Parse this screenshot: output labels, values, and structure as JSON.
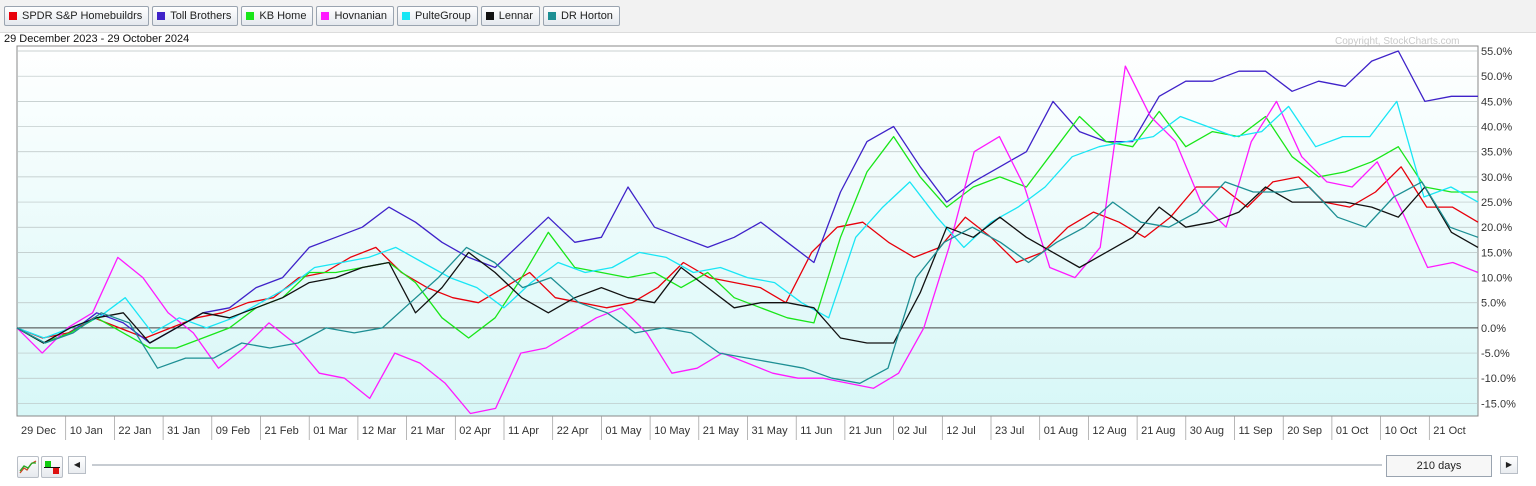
{
  "legend": [
    {
      "label": "SPDR S&P Homebuildrs",
      "color": "#e8000b"
    },
    {
      "label": "Toll Brothers",
      "color": "#3f22c9"
    },
    {
      "label": "KB Home",
      "color": "#19e619"
    },
    {
      "label": "Hovnanian",
      "color": "#ff1aff"
    },
    {
      "label": "PulteGroup",
      "color": "#19e6f5"
    },
    {
      "label": "Lennar",
      "color": "#111111"
    },
    {
      "label": "DR Horton",
      "color": "#1d8f94"
    }
  ],
  "header": {
    "date_range": "29 December 2023 - 29 October 2024",
    "copyright": "Copyright, StockCharts.com"
  },
  "controls": {
    "range_label": "210 days",
    "left_arrow": "◀",
    "right_arrow": "▶",
    "line_chart_icon": "line-chart-icon",
    "perf_icon": "performance-bar-icon"
  },
  "chart_data": {
    "type": "line",
    "x_labels": [
      "29 Dec",
      "10 Jan",
      "22 Jan",
      "31 Jan",
      "09 Feb",
      "21 Feb",
      "01 Mar",
      "12 Mar",
      "21 Mar",
      "02 Apr",
      "11 Apr",
      "22 Apr",
      "01 May",
      "10 May",
      "21 May",
      "31 May",
      "11 Jun",
      "21 Jun",
      "02 Jul",
      "12 Jul",
      "23 Jul",
      "01 Aug",
      "12 Aug",
      "21 Aug",
      "30 Aug",
      "11 Sep",
      "20 Sep",
      "01 Oct",
      "10 Oct",
      "21 Oct"
    ],
    "y_ticks": [
      55,
      50,
      45,
      40,
      35,
      30,
      25,
      20,
      15,
      10,
      5,
      0,
      -5,
      -10,
      -15
    ],
    "y_tick_labels": [
      "55.0%",
      "50.0%",
      "45.0%",
      "40.0%",
      "35.0%",
      "30.0%",
      "25.0%",
      "20.0%",
      "15.0%",
      "10.0%",
      "5.0%",
      "0.0%",
      "-5.0%",
      "-10.0%",
      "-15.0%"
    ],
    "ylim": [
      -17.5,
      56
    ],
    "grid": true,
    "series": [
      {
        "name": "SPDR S&P Homebuildrs",
        "color": "#e8000b",
        "values": [
          0,
          -2,
          -1,
          2,
          0,
          -2,
          0,
          2,
          3,
          5,
          6,
          10,
          11,
          14,
          16,
          11,
          8,
          6,
          5,
          8,
          11,
          6,
          5,
          4,
          5,
          8,
          13,
          10,
          9,
          8,
          5,
          15,
          20,
          21,
          17,
          14,
          16,
          22,
          18,
          13,
          15,
          20,
          23,
          21,
          18,
          22,
          28,
          28,
          24,
          29,
          30,
          25,
          24,
          27,
          32,
          24,
          24,
          21
        ]
      },
      {
        "name": "Toll Brothers",
        "color": "#3f22c9",
        "values": [
          0,
          -3,
          -1,
          3,
          1,
          -3,
          0,
          3,
          4,
          8,
          10,
          16,
          18,
          20,
          24,
          21,
          17,
          14,
          12,
          17,
          22,
          17,
          18,
          28,
          20,
          18,
          16,
          18,
          21,
          17,
          13,
          27,
          37,
          40,
          32,
          25,
          29,
          32,
          35,
          45,
          39,
          37,
          37,
          46,
          49,
          49,
          51,
          51,
          47,
          49,
          48,
          53,
          55,
          45,
          46,
          46
        ]
      },
      {
        "name": "KB Home",
        "color": "#19e619",
        "values": [
          0,
          -3,
          -1,
          2,
          -1,
          -4,
          -4,
          -2,
          0,
          4,
          6,
          11,
          11,
          12,
          13,
          9,
          2,
          -2,
          2,
          10,
          19,
          12,
          11,
          10,
          11,
          8,
          11,
          6,
          4,
          2,
          1,
          18,
          31,
          38,
          30,
          24,
          28,
          30,
          28,
          35,
          42,
          37,
          36,
          43,
          36,
          39,
          38,
          42,
          34,
          30,
          31,
          33,
          36,
          28,
          27,
          27
        ]
      },
      {
        "name": "Hovnanian",
        "color": "#ff1aff",
        "values": [
          0,
          -5,
          0,
          3,
          14,
          10,
          3,
          -1,
          -8,
          -4,
          1,
          -3,
          -9,
          -10,
          -14,
          -5,
          -7,
          -11,
          -17,
          -16,
          -5,
          -4,
          -1,
          2,
          4,
          -1,
          -9,
          -8,
          -5,
          -7,
          -9,
          -10,
          -10,
          -11,
          -12,
          -9,
          0,
          16,
          35,
          38,
          28,
          12,
          10,
          16,
          52,
          42,
          37,
          25,
          20,
          37,
          45,
          34,
          29,
          28,
          33,
          23,
          12,
          13,
          11
        ]
      },
      {
        "name": "PulteGroup",
        "color": "#19e6f5",
        "values": [
          0,
          -2,
          0,
          2,
          6,
          -1,
          2,
          0,
          2,
          5,
          8,
          12,
          13,
          14,
          16,
          13,
          10,
          8,
          4,
          9,
          13,
          11,
          12,
          15,
          14,
          11,
          12,
          10,
          9,
          5,
          2,
          18,
          24,
          29,
          22,
          16,
          21,
          24,
          28,
          34,
          36,
          37,
          38,
          42,
          40,
          38,
          39,
          44,
          36,
          38,
          38,
          45,
          26,
          28,
          25
        ]
      },
      {
        "name": "Lennar",
        "color": "#111111",
        "values": [
          0,
          -3,
          0,
          2,
          3,
          -3,
          0,
          3,
          2,
          4,
          6,
          9,
          10,
          12,
          13,
          3,
          8,
          15,
          11,
          6,
          3,
          6,
          8,
          6,
          5,
          12,
          8,
          4,
          5,
          5,
          4,
          -2,
          -3,
          -3,
          7,
          20,
          18,
          22,
          18,
          15,
          12,
          15,
          18,
          24,
          20,
          21,
          23,
          28,
          25,
          25,
          25,
          24,
          22,
          28,
          19,
          16
        ]
      },
      {
        "name": "DR Horton",
        "color": "#1d8f94",
        "values": [
          0,
          -3,
          -1,
          3,
          1,
          -8,
          -6,
          -6,
          -3,
          -4,
          -3,
          0,
          -1,
          0,
          5,
          10,
          16,
          13,
          8,
          10,
          5,
          3,
          -1,
          0,
          -1,
          -5,
          -6,
          -7,
          -8,
          -10,
          -11,
          -8,
          10,
          17,
          20,
          17,
          13,
          17,
          20,
          25,
          21,
          20,
          23,
          29,
          27,
          27,
          28,
          22,
          20,
          26,
          29,
          20,
          18
        ]
      }
    ]
  }
}
